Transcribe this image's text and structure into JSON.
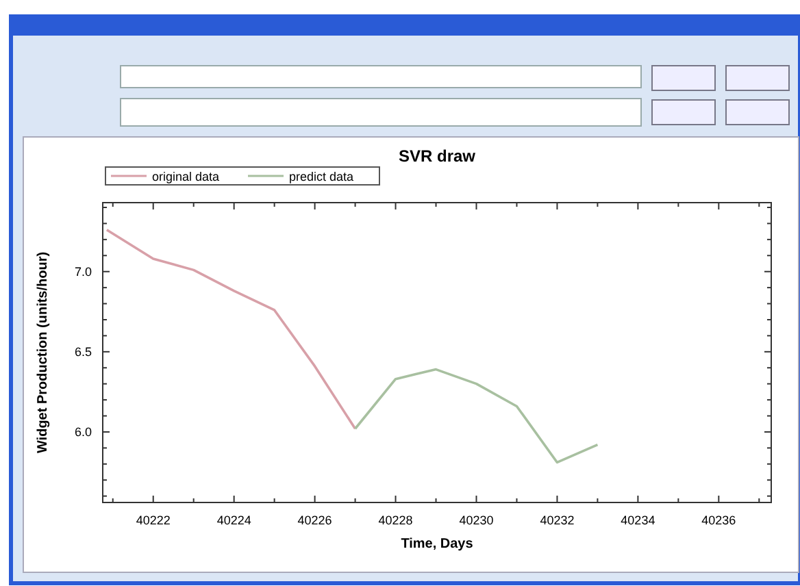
{
  "chart_data": {
    "type": "line",
    "title": "SVR draw",
    "xlabel": "Time, Days",
    "ylabel": "Widget Production (units/hour)",
    "series": [
      {
        "name": "original data",
        "color": "#d8a0a8",
        "x": [
          40220.85,
          40222,
          40223,
          40224,
          40225,
          40226,
          40227
        ],
        "values": [
          7.26,
          7.08,
          7.01,
          6.88,
          6.76,
          6.41,
          6.02
        ]
      },
      {
        "name": "predict data",
        "color": "#a8c0a0",
        "x": [
          40227,
          40228,
          40228.5,
          40229,
          40230,
          40231,
          40232,
          40233
        ],
        "values": [
          6.02,
          6.33,
          6.36,
          6.39,
          6.3,
          6.16,
          5.81,
          5.92
        ]
      }
    ],
    "xlim": [
      40220.75,
      40237.3
    ],
    "ylim": [
      5.56,
      7.43
    ],
    "xticks": [
      {
        "value": 40221,
        "label": null
      },
      40222,
      {
        "value": 40223,
        "label": null
      },
      40224,
      {
        "value": 40225,
        "label": null
      },
      40226,
      {
        "value": 40227,
        "label": null
      },
      40228,
      {
        "value": 40229,
        "label": null
      },
      40230,
      {
        "value": 40231,
        "label": null
      },
      40232,
      {
        "value": 40233,
        "label": null
      },
      40234,
      {
        "value": 40235,
        "label": null
      },
      40236,
      {
        "value": 40237,
        "label": null
      }
    ],
    "yticks": [
      {
        "value": 5.6,
        "label": null
      },
      {
        "value": 5.7,
        "label": null
      },
      {
        "value": 5.8,
        "label": null
      },
      {
        "value": 5.9,
        "label": null
      },
      {
        "value": 6,
        "label": "6.0"
      },
      {
        "value": 6.1,
        "label": null
      },
      {
        "value": 6.2,
        "label": null
      },
      {
        "value": 6.3,
        "label": null
      },
      {
        "value": 6.4,
        "label": null
      },
      {
        "value": 6.5,
        "label": "6.5"
      },
      {
        "value": 6.6,
        "label": null
      },
      {
        "value": 6.7,
        "label": null
      },
      {
        "value": 6.8,
        "label": null
      },
      {
        "value": 6.9,
        "label": null
      },
      {
        "value": 7,
        "label": "7.0"
      },
      {
        "value": 7.1,
        "label": null
      },
      {
        "value": 7.2,
        "label": null
      },
      {
        "value": 7.3,
        "label": null
      },
      {
        "value": 7.4,
        "label": null
      }
    ],
    "legend": "top left",
    "grid": false
  }
}
